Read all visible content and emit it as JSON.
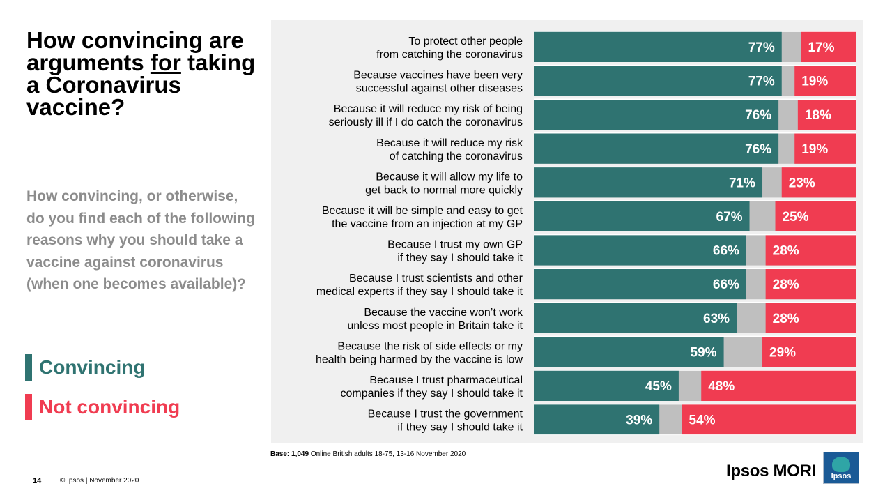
{
  "title": {
    "part1": "How convincing are arguments ",
    "underlined": "for",
    "part2": " taking a Coronavirus vaccine?"
  },
  "subtitle": "How convincing, or otherwise, do you find each of the following reasons why you should take a vaccine against coronavirus (when one becomes available)?",
  "legend": {
    "convincing": "Convincing",
    "not_convincing": "Not convincing"
  },
  "colors": {
    "convincing": "#2f7371",
    "not_convincing": "#f03c51",
    "neutral": "#bfbfbf"
  },
  "chart_data": {
    "type": "bar",
    "orientation": "horizontal",
    "stacked": true,
    "categories": [
      [
        "To protect other people",
        "from catching the coronavirus"
      ],
      [
        "Because vaccines have been very",
        "successful against other diseases"
      ],
      [
        "Because it will reduce my risk of being",
        "seriously ill if I do catch the coronavirus"
      ],
      [
        "Because it will reduce my risk",
        "of catching the coronavirus"
      ],
      [
        "Because it will allow my life to",
        "get back to normal more quickly"
      ],
      [
        "Because it will be simple and easy to get",
        "the vaccine from an injection at my GP"
      ],
      [
        "Because I trust my own GP",
        "if they say I should take it"
      ],
      [
        "Because I trust scientists and other",
        "medical experts if they say I should take it"
      ],
      [
        "Because the vaccine won’t work",
        "unless most people in Britain take it"
      ],
      [
        "Because the risk of side effects or my",
        "health being harmed by the vaccine is low"
      ],
      [
        "Because I trust pharmaceutical",
        "companies if they say I should take it"
      ],
      [
        "Because I trust the government",
        "if they say I should take it"
      ]
    ],
    "series": [
      {
        "name": "Convincing",
        "values": [
          77,
          77,
          76,
          76,
          71,
          67,
          66,
          66,
          63,
          59,
          45,
          39
        ]
      },
      {
        "name": "Not convincing",
        "values": [
          17,
          19,
          18,
          19,
          23,
          25,
          28,
          28,
          28,
          29,
          48,
          54
        ]
      }
    ],
    "xlim": [
      0,
      100
    ],
    "value_suffix": "%"
  },
  "footer": {
    "base_label": "Base:",
    "base_value": "1,049",
    "base_text": " Online British adults 18-75, 13-16 November 2020",
    "page_number": "14",
    "copyright": "© Ipsos | November 2020",
    "brand": "Ipsos MORI",
    "logo_text": "Ipsos"
  }
}
